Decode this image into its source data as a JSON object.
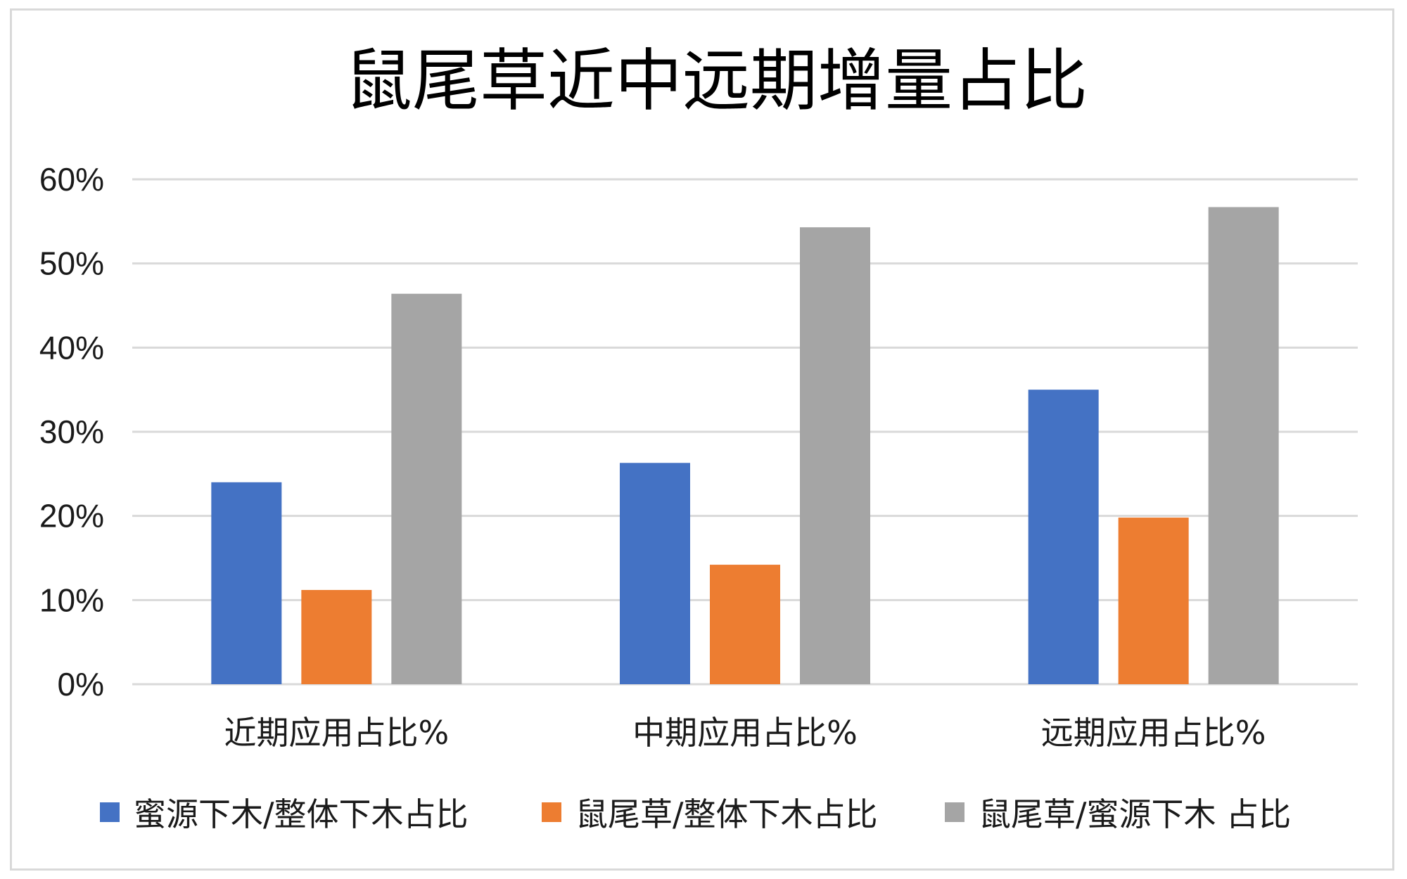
{
  "chart_data": {
    "type": "bar",
    "title": "鼠尾草近中远期增量占比",
    "xlabel": "",
    "ylabel": "",
    "ylim": [
      0,
      60
    ],
    "yticks": [
      "0%",
      "10%",
      "20%",
      "30%",
      "40%",
      "50%",
      "60%"
    ],
    "grid": true,
    "legend_position": "bottom",
    "categories": [
      "近期应用占比%",
      "中期应用占比%",
      "远期应用占比%"
    ],
    "series": [
      {
        "name": "蜜源下木/整体下木占比",
        "color": "#4472C4",
        "values": [
          24.0,
          26.3,
          35.0
        ]
      },
      {
        "name": "鼠尾草/整体下木占比",
        "color": "#ED7D31",
        "values": [
          11.2,
          14.2,
          19.8
        ]
      },
      {
        "name": "鼠尾草/蜜源下木 占比",
        "color": "#A5A5A5",
        "values": [
          46.4,
          54.3,
          56.7
        ]
      }
    ]
  }
}
